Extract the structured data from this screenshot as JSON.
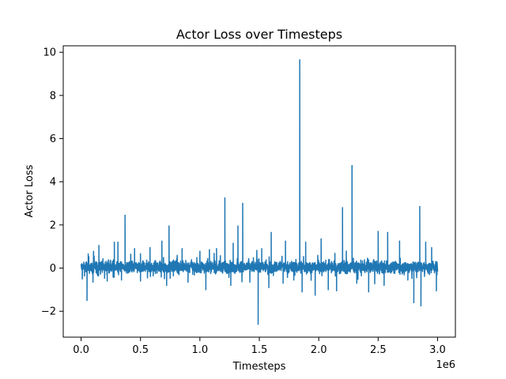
{
  "chart_data": {
    "type": "line",
    "title": "Actor Loss over Timesteps",
    "xlabel": "Timesteps",
    "ylabel": "Actor Loss",
    "x_offset_label": "1e6",
    "xlim": [
      -0.15,
      3.15
    ],
    "ylim": [
      -3.2,
      10.3
    ],
    "xticks": [
      0.0,
      0.5,
      1.0,
      1.5,
      2.0,
      2.5,
      3.0
    ],
    "xtick_labels": [
      "0.0",
      "0.5",
      "1.0",
      "1.5",
      "2.0",
      "2.5",
      "3.0"
    ],
    "yticks": [
      -2,
      0,
      2,
      4,
      6,
      8,
      10
    ],
    "ytick_labels": [
      "−2",
      "0",
      "2",
      "4",
      "6",
      "8",
      "10"
    ],
    "grid": false,
    "color": "#1f77b4",
    "x_range": [
      0.0,
      3.0
    ],
    "spikes": [
      {
        "x": 0.01,
        "y": -0.5
      },
      {
        "x": 0.05,
        "y": -1.5
      },
      {
        "x": 0.06,
        "y": 0.65
      },
      {
        "x": 0.1,
        "y": -0.65
      },
      {
        "x": 0.15,
        "y": 1.05
      },
      {
        "x": 0.22,
        "y": -0.6
      },
      {
        "x": 0.28,
        "y": 1.2
      },
      {
        "x": 0.31,
        "y": 1.2
      },
      {
        "x": 0.34,
        "y": -0.55
      },
      {
        "x": 0.37,
        "y": 2.45
      },
      {
        "x": 0.45,
        "y": 0.9
      },
      {
        "x": 0.5,
        "y": -0.6
      },
      {
        "x": 0.58,
        "y": 0.95
      },
      {
        "x": 0.68,
        "y": 1.25
      },
      {
        "x": 0.72,
        "y": -0.8
      },
      {
        "x": 0.74,
        "y": 1.95
      },
      {
        "x": 0.85,
        "y": 0.9
      },
      {
        "x": 0.9,
        "y": -0.65
      },
      {
        "x": 1.05,
        "y": -1.0
      },
      {
        "x": 1.08,
        "y": 0.85
      },
      {
        "x": 1.14,
        "y": 0.9
      },
      {
        "x": 1.21,
        "y": 3.25
      },
      {
        "x": 1.26,
        "y": -0.8
      },
      {
        "x": 1.28,
        "y": 1.15
      },
      {
        "x": 1.32,
        "y": 1.95
      },
      {
        "x": 1.36,
        "y": 3.0
      },
      {
        "x": 1.42,
        "y": -0.65
      },
      {
        "x": 1.49,
        "y": -2.6
      },
      {
        "x": 1.52,
        "y": 0.9
      },
      {
        "x": 1.58,
        "y": -0.9
      },
      {
        "x": 1.6,
        "y": 1.65
      },
      {
        "x": 1.7,
        "y": -0.7
      },
      {
        "x": 1.72,
        "y": 1.25
      },
      {
        "x": 1.79,
        "y": -0.55
      },
      {
        "x": 1.84,
        "y": 9.65
      },
      {
        "x": 1.86,
        "y": -1.1
      },
      {
        "x": 1.89,
        "y": 1.2
      },
      {
        "x": 1.97,
        "y": -1.25
      },
      {
        "x": 2.02,
        "y": 1.35
      },
      {
        "x": 2.08,
        "y": -1.0
      },
      {
        "x": 2.15,
        "y": -1.05
      },
      {
        "x": 2.2,
        "y": 2.8
      },
      {
        "x": 2.28,
        "y": 4.75
      },
      {
        "x": 2.32,
        "y": -0.7
      },
      {
        "x": 2.42,
        "y": -1.1
      },
      {
        "x": 2.5,
        "y": 1.7
      },
      {
        "x": 2.55,
        "y": -0.8
      },
      {
        "x": 2.58,
        "y": 1.65
      },
      {
        "x": 2.68,
        "y": 1.25
      },
      {
        "x": 2.75,
        "y": -0.55
      },
      {
        "x": 2.8,
        "y": -1.6
      },
      {
        "x": 2.85,
        "y": 2.85
      },
      {
        "x": 2.86,
        "y": -1.75
      },
      {
        "x": 2.9,
        "y": 1.2
      },
      {
        "x": 2.95,
        "y": 0.95
      },
      {
        "x": 2.99,
        "y": -1.05
      }
    ]
  }
}
